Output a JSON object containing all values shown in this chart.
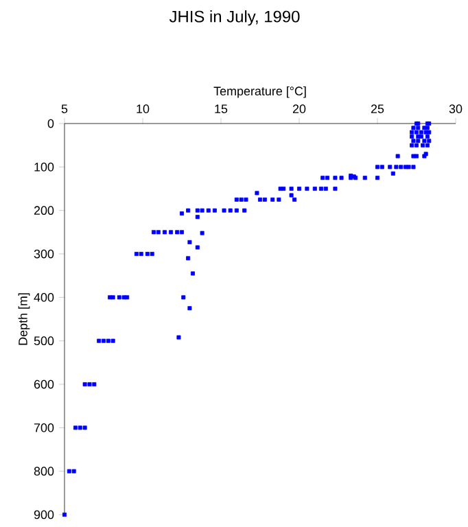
{
  "chart_data": {
    "type": "scatter",
    "title": "JHIS in July, 1990",
    "xlabel": "Temperature [°C]",
    "ylabel": "Depth [m]",
    "xlim": [
      5,
      30
    ],
    "ylim": [
      900,
      0
    ],
    "xticks": [
      5,
      10,
      15,
      20,
      25,
      30
    ],
    "yticks": [
      0,
      100,
      200,
      300,
      400,
      500,
      600,
      700,
      800,
      900
    ],
    "marker": "square",
    "series": [
      {
        "color": "#0000ff",
        "x": [
          27.5,
          27.6,
          28.2,
          28.3,
          27.3,
          27.6,
          28.0,
          28.2,
          27.2,
          27.5,
          27.8,
          28.1,
          28.3,
          27.2,
          27.6,
          27.8,
          28.2,
          27.3,
          27.6,
          28.0,
          28.3,
          27.2,
          27.5,
          27.9,
          28.2,
          27.3,
          27.5,
          28.0,
          28.1,
          26.3,
          25.0,
          25.3,
          25.8,
          26.2,
          26.5,
          26.8,
          27.0,
          27.3,
          26.0,
          23.3,
          23.5,
          21.5,
          21.8,
          22.3,
          22.7,
          23.3,
          23.6,
          24.2,
          25.0,
          18.8,
          19.0,
          19.5,
          20.0,
          20.5,
          21.0,
          21.4,
          21.7,
          22.3,
          19.5,
          17.3,
          16.0,
          16.3,
          16.6,
          17.5,
          17.8,
          18.3,
          18.7,
          19.7,
          12.9,
          13.5,
          13.8,
          14.2,
          14.6,
          15.2,
          15.6,
          16.0,
          16.5,
          12.5,
          13.5,
          10.7,
          11.0,
          11.4,
          11.8,
          12.2,
          12.5,
          13.8,
          13.0,
          13.5,
          9.6,
          9.9,
          10.3,
          10.6,
          12.9,
          13.2,
          7.9,
          8.1,
          8.5,
          8.8,
          9.0,
          12.6,
          13.0,
          12.3,
          7.2,
          7.5,
          7.8,
          8.1,
          6.3,
          6.6,
          6.9,
          5.7,
          6.0,
          6.3,
          5.3,
          5.6,
          5.0
        ],
        "values": [
          0,
          0,
          0,
          0,
          10,
          10,
          10,
          10,
          20,
          20,
          20,
          20,
          20,
          30,
          30,
          30,
          30,
          40,
          40,
          40,
          40,
          50,
          50,
          50,
          50,
          75,
          75,
          75,
          70,
          75,
          100,
          100,
          100,
          100,
          100,
          100,
          100,
          100,
          115,
          120,
          122,
          125,
          125,
          125,
          125,
          125,
          125,
          125,
          125,
          150,
          150,
          150,
          150,
          150,
          150,
          150,
          150,
          150,
          165,
          160,
          175,
          175,
          175,
          175,
          175,
          175,
          175,
          175,
          200,
          200,
          200,
          200,
          200,
          200,
          200,
          200,
          200,
          207,
          215,
          250,
          250,
          250,
          250,
          250,
          250,
          252,
          273,
          285,
          300,
          300,
          300,
          300,
          310,
          345,
          400,
          400,
          400,
          400,
          400,
          400,
          425,
          492,
          500,
          500,
          500,
          500,
          600,
          600,
          600,
          700,
          700,
          700,
          800,
          800,
          900
        ]
      }
    ]
  }
}
